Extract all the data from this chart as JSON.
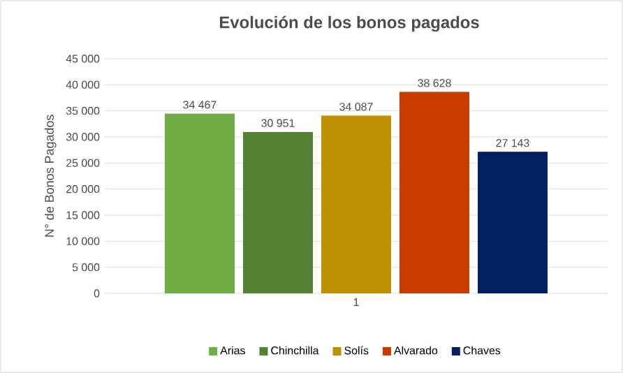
{
  "chart_data": {
    "type": "bar",
    "title": "Evolución de los bonos pagados",
    "ylabel": "N° de Bonos Pagados",
    "categories": [
      "1"
    ],
    "series": [
      {
        "name": "Arias",
        "color": "#70ad47",
        "values": [
          34467
        ],
        "value_labels": [
          "34 467"
        ]
      },
      {
        "name": "Chinchilla",
        "color": "#548235",
        "values": [
          30951
        ],
        "value_labels": [
          "30 951"
        ]
      },
      {
        "name": "Solís",
        "color": "#bf9000",
        "values": [
          34087
        ],
        "value_labels": [
          "34 087"
        ]
      },
      {
        "name": "Alvarado",
        "color": "#c83c00",
        "values": [
          38628
        ],
        "value_labels": [
          "38 628"
        ]
      },
      {
        "name": "Chaves",
        "color": "#002060",
        "values": [
          27143
        ],
        "value_labels": [
          "27 143"
        ]
      }
    ],
    "ylim": [
      0,
      45000
    ],
    "yticks": [
      {
        "value": 0,
        "label": "0"
      },
      {
        "value": 5000,
        "label": "5 000"
      },
      {
        "value": 10000,
        "label": "10 000"
      },
      {
        "value": 15000,
        "label": "15 000"
      },
      {
        "value": 20000,
        "label": "20 000"
      },
      {
        "value": 25000,
        "label": "25 000"
      },
      {
        "value": 30000,
        "label": "30 000"
      },
      {
        "value": 35000,
        "label": "35 000"
      },
      {
        "value": 40000,
        "label": "40 000"
      },
      {
        "value": 45000,
        "label": "45 000"
      }
    ],
    "grid": "y",
    "legend": "bottom"
  }
}
